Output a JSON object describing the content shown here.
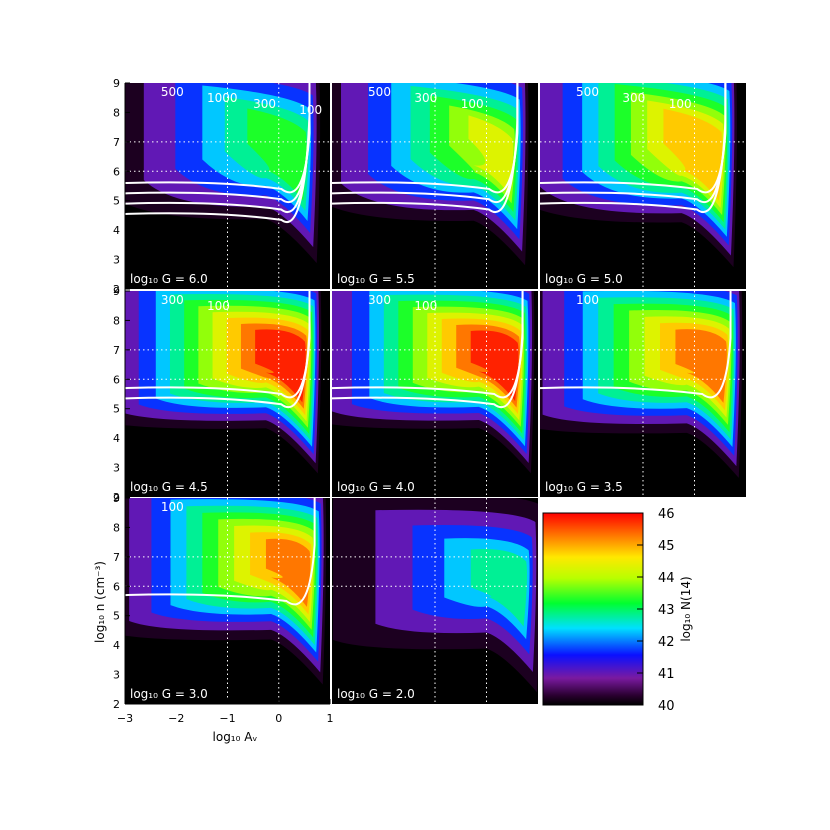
{
  "chart_data": {
    "type": "heatmap",
    "colorbar": {
      "label": "log₁₀ N(14)",
      "ticks": [
        40,
        41,
        42,
        43,
        44,
        45,
        46
      ],
      "range": [
        40,
        46
      ]
    },
    "x_axis": {
      "label": "log₁₀ Aᵥ",
      "range": [
        -3,
        1
      ],
      "ticks": [
        "−3",
        "−2",
        "−1",
        "0",
        "1"
      ]
    },
    "y_axis": {
      "label": "log₁₀ n (cm⁻³)",
      "range": [
        2,
        9
      ],
      "ticks": [
        "2",
        "3",
        "4",
        "5",
        "6",
        "7",
        "8",
        "9"
      ]
    },
    "panels": [
      {
        "label": "log₁₀ G = 6.0",
        "logG": 6.0,
        "peak": 43.6,
        "contours": [
          "500",
          "1000",
          "300",
          "100"
        ]
      },
      {
        "label": "log₁₀ G = 5.5",
        "logG": 5.5,
        "peak": 44.3,
        "contours": [
          "500",
          "300",
          "100"
        ]
      },
      {
        "label": "log₁₀ G = 5.0",
        "logG": 5.0,
        "peak": 45.2,
        "contours": [
          "500",
          "300",
          "100"
        ]
      },
      {
        "label": "log₁₀ G = 4.5",
        "logG": 4.5,
        "peak": 46.0,
        "contours": [
          "300",
          "100"
        ]
      },
      {
        "label": "log₁₀ G = 4.0",
        "logG": 4.0,
        "peak": 45.9,
        "contours": [
          "300",
          "100"
        ]
      },
      {
        "label": "log₁₀ G = 3.5",
        "logG": 3.5,
        "peak": 45.5,
        "contours": [
          "100"
        ]
      },
      {
        "label": "log₁₀ G = 3.0",
        "logG": 3.0,
        "peak": 45.3,
        "contours": [
          "100"
        ]
      },
      {
        "label": "log₁₀ G = 2.0",
        "logG": 2.0,
        "peak": 43.0,
        "contours": []
      }
    ]
  }
}
